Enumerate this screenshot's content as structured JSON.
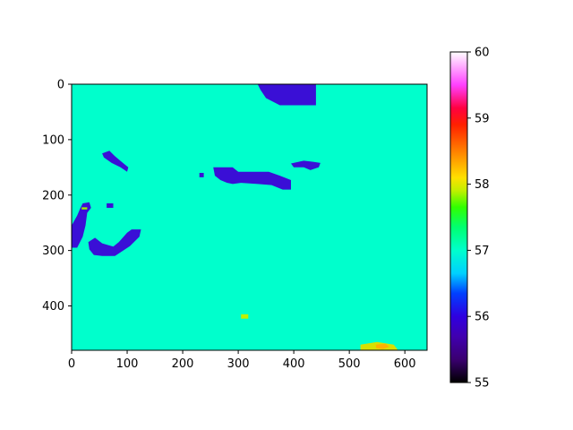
{
  "chart_data": {
    "type": "heatmap",
    "title": "",
    "xlabel": "",
    "ylabel": "",
    "xlim": [
      0,
      640
    ],
    "ylim": [
      480,
      0
    ],
    "x_ticks": [
      "0",
      "100",
      "200",
      "300",
      "400",
      "500",
      "600"
    ],
    "x_tick_values": [
      0,
      100,
      200,
      300,
      400,
      500,
      600
    ],
    "y_ticks": [
      "0",
      "100",
      "200",
      "300",
      "400"
    ],
    "y_tick_values": [
      0,
      100,
      200,
      300,
      400
    ],
    "colormap": "gist_ncar",
    "color_range": [
      55,
      60
    ],
    "colorbar_ticks": [
      "55",
      "56",
      "57",
      "58",
      "59",
      "60"
    ],
    "colorbar_tick_values": [
      55,
      56,
      57,
      58,
      59,
      60
    ],
    "background_value": 57.0,
    "background_color": "#00ffcc",
    "regions": [
      {
        "value": 56.0,
        "color": "#3a0fd6",
        "points": [
          [
            335,
            0
          ],
          [
            440,
            0
          ],
          [
            440,
            38
          ],
          [
            375,
            38
          ],
          [
            350,
            25
          ],
          [
            340,
            10
          ]
        ]
      },
      {
        "value": 56.0,
        "color": "#3a0fd6",
        "points": [
          [
            55,
            125
          ],
          [
            68,
            120
          ],
          [
            78,
            130
          ],
          [
            90,
            140
          ],
          [
            102,
            150
          ],
          [
            100,
            158
          ],
          [
            88,
            150
          ],
          [
            72,
            142
          ],
          [
            58,
            132
          ]
        ]
      },
      {
        "value": 56.0,
        "color": "#3a0fd6",
        "points": [
          [
            255,
            150
          ],
          [
            290,
            150
          ],
          [
            300,
            158
          ],
          [
            355,
            158
          ],
          [
            375,
            165
          ],
          [
            395,
            173
          ],
          [
            395,
            190
          ],
          [
            380,
            190
          ],
          [
            360,
            182
          ],
          [
            335,
            180
          ],
          [
            305,
            178
          ],
          [
            290,
            180
          ],
          [
            280,
            178
          ],
          [
            268,
            173
          ],
          [
            258,
            165
          ]
        ]
      },
      {
        "value": 56.0,
        "color": "#3a0fd6",
        "points": [
          [
            230,
            160
          ],
          [
            238,
            160
          ],
          [
            238,
            168
          ],
          [
            230,
            168
          ]
        ]
      },
      {
        "value": 56.0,
        "color": "#3a0fd6",
        "points": [
          [
            395,
            143
          ],
          [
            418,
            138
          ],
          [
            435,
            140
          ],
          [
            448,
            142
          ],
          [
            445,
            150
          ],
          [
            430,
            155
          ],
          [
            418,
            150
          ],
          [
            400,
            150
          ]
        ]
      },
      {
        "value": 56.0,
        "color": "#3a0fd6",
        "points": [
          [
            20,
            215
          ],
          [
            32,
            213
          ],
          [
            35,
            223
          ],
          [
            28,
            232
          ],
          [
            25,
            255
          ],
          [
            20,
            275
          ],
          [
            10,
            295
          ],
          [
            0,
            295
          ],
          [
            0,
            255
          ],
          [
            10,
            237
          ],
          [
            15,
            225
          ]
        ]
      },
      {
        "value": 56.0,
        "color": "#3a0fd6",
        "points": [
          [
            63,
            215
          ],
          [
            75,
            215
          ],
          [
            75,
            223
          ],
          [
            63,
            223
          ]
        ]
      },
      {
        "value": 56.0,
        "color": "#3a0fd6",
        "points": [
          [
            30,
            285
          ],
          [
            42,
            277
          ],
          [
            55,
            287
          ],
          [
            75,
            293
          ],
          [
            85,
            285
          ],
          [
            100,
            268
          ],
          [
            108,
            262
          ],
          [
            125,
            262
          ],
          [
            122,
            275
          ],
          [
            105,
            292
          ],
          [
            90,
            302
          ],
          [
            78,
            310
          ],
          [
            55,
            310
          ],
          [
            40,
            308
          ],
          [
            32,
            298
          ]
        ]
      },
      {
        "value": 58.0,
        "color": "#c0f000",
        "points": [
          [
            305,
            415
          ],
          [
            318,
            415
          ],
          [
            318,
            423
          ],
          [
            305,
            423
          ]
        ]
      },
      {
        "value": 57.7,
        "color": "#9cf000",
        "points": [
          [
            18,
            222
          ],
          [
            28,
            222
          ],
          [
            28,
            226
          ],
          [
            18,
            226
          ]
        ]
      },
      {
        "value": 58.2,
        "color": "#d6e000",
        "points": [
          [
            520,
            470
          ],
          [
            550,
            465
          ],
          [
            580,
            470
          ],
          [
            588,
            480
          ],
          [
            520,
            480
          ]
        ]
      },
      {
        "value": 58.6,
        "color": "#ffb000",
        "points": [
          [
            548,
            470
          ],
          [
            565,
            468
          ],
          [
            572,
            474
          ],
          [
            560,
            478
          ],
          [
            548,
            476
          ]
        ]
      }
    ]
  }
}
